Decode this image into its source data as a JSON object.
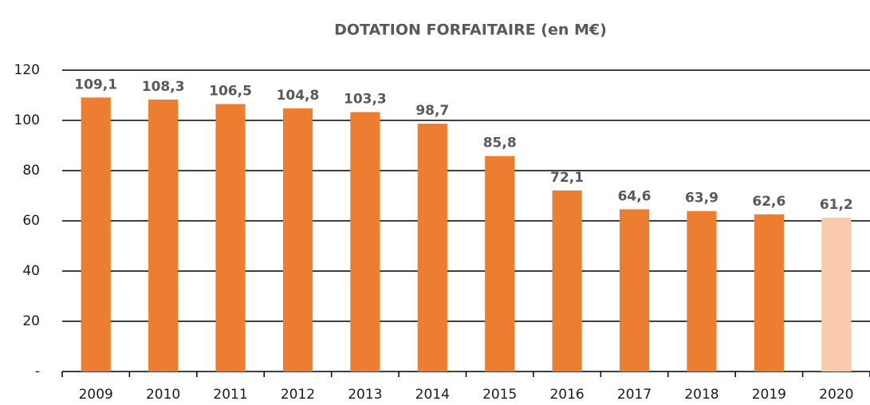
{
  "chart_data": {
    "type": "bar",
    "title": "DOTATION FORFAITAIRE (en M€)",
    "categories": [
      "2009",
      "2010",
      "2011",
      "2012",
      "2013",
      "2014",
      "2015",
      "2016",
      "2017",
      "2018",
      "2019",
      "2020"
    ],
    "values": [
      109.1,
      108.3,
      106.5,
      104.8,
      103.3,
      98.7,
      85.8,
      72.1,
      64.6,
      63.9,
      62.6,
      61.2
    ],
    "value_labels": [
      "109,1",
      "108,3",
      "106,5",
      "104,8",
      "103,3",
      "98,7",
      "85,8",
      "72,1",
      "64,6",
      "63,9",
      "62,6",
      "61,2"
    ],
    "colors": [
      "#ed7d31",
      "#ed7d31",
      "#ed7d31",
      "#ed7d31",
      "#ed7d31",
      "#ed7d31",
      "#ed7d31",
      "#ed7d31",
      "#ed7d31",
      "#ed7d31",
      "#ed7d31",
      "#f8cbad"
    ],
    "ylim": [
      0,
      120
    ],
    "yticks": [
      {
        "value": 0,
        "label": "-"
      },
      20,
      40,
      60,
      80,
      100,
      120
    ],
    "grid": true
  }
}
